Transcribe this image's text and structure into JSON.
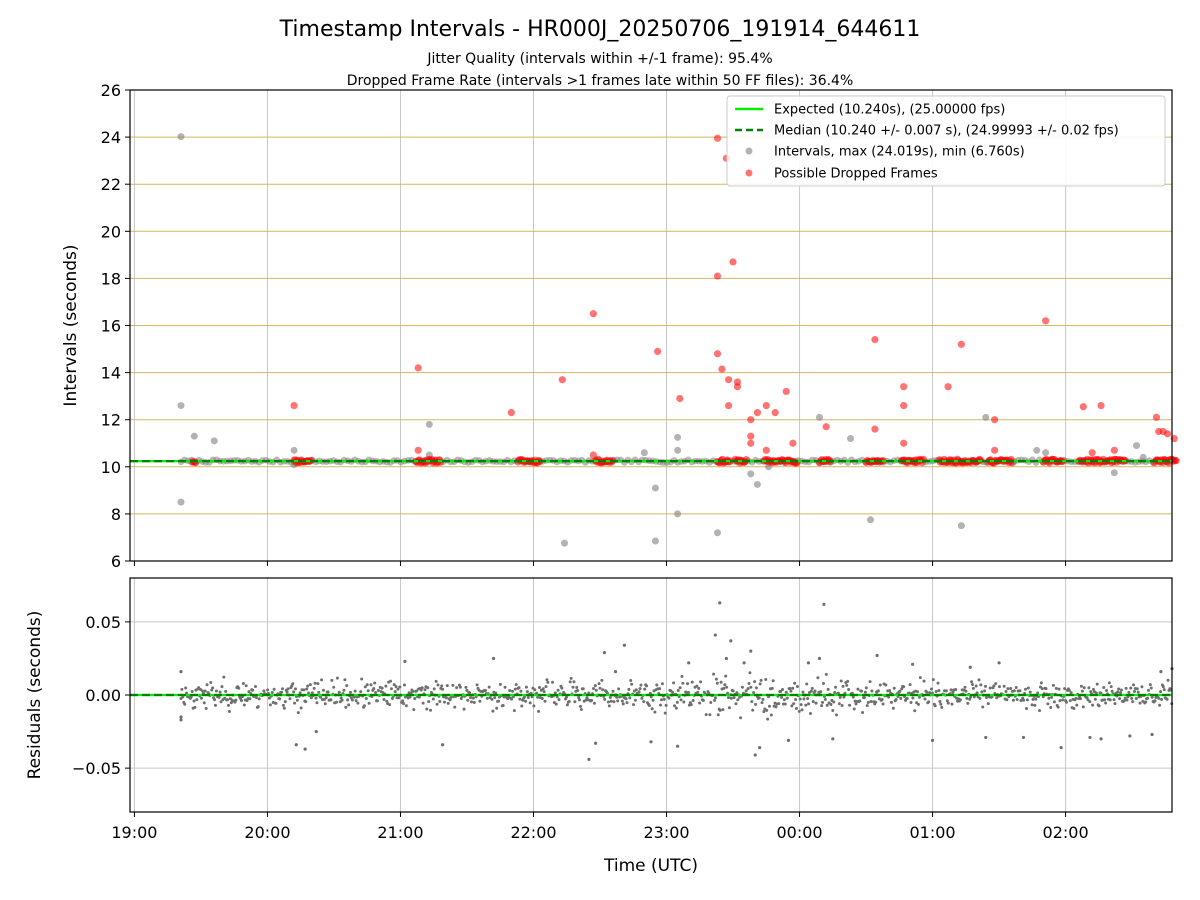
{
  "title": "Timestamp Intervals - HR000J_20250706_191914_644611",
  "subtitle_lines": [
    "Jitter Quality (intervals within +/-1 frame): 95.4%",
    "Dropped Frame Rate (intervals >1 frames late within 50 FF files): 36.4%"
  ],
  "colors": {
    "expected": "#00ee00",
    "median": "#007f00",
    "intervals": "#808080",
    "dropped": "#ff0000",
    "hgrid_top": "#d2b860",
    "grid": "#c8c8c8"
  },
  "chart_data": [
    {
      "type": "scatter",
      "ylabel": "Intervals (seconds)",
      "ylim": [
        6,
        26
      ],
      "yticks": [
        "6",
        "8",
        "10",
        "12",
        "14",
        "16",
        "18",
        "20",
        "22",
        "24",
        "26"
      ],
      "xlim": [
        "18:58",
        "02:48"
      ],
      "legend_position": "top-right",
      "legend": [
        "Expected (10.240s), (25.00000 fps)",
        "Median (10.240 +/- 0.007 s), (24.99993 +/- 0.02 fps)",
        "Intervals, max (24.019s), min (6.760s)",
        "Possible Dropped Frames"
      ],
      "expected_interval": 10.24,
      "median_interval": 10.24,
      "series": [
        {
          "name": "Intervals, max (24.019s), min (6.760s)",
          "points": [
            [
              "19:21",
              24.02
            ],
            [
              "19:21",
              12.6
            ],
            [
              "19:21",
              8.5
            ],
            [
              "19:27",
              11.3
            ],
            [
              "19:36",
              11.1
            ],
            [
              "20:12",
              10.7
            ],
            [
              "20:12",
              10.1
            ],
            [
              "21:13",
              11.8
            ],
            [
              "21:13",
              10.5
            ],
            [
              "22:14",
              6.76
            ],
            [
              "22:50",
              10.6
            ],
            [
              "22:55",
              9.1
            ],
            [
              "22:55",
              6.85
            ],
            [
              "23:05",
              11.25
            ],
            [
              "23:05",
              10.7
            ],
            [
              "23:05",
              8.0
            ],
            [
              "23:23",
              7.2
            ],
            [
              "23:38",
              9.7
            ],
            [
              "23:41",
              9.25
            ],
            [
              "23:46",
              10.0
            ],
            [
              "00:09",
              12.1
            ],
            [
              "00:23",
              11.2
            ],
            [
              "00:32",
              7.75
            ],
            [
              "01:13",
              7.5
            ],
            [
              "01:24",
              12.1
            ],
            [
              "01:47",
              10.7
            ],
            [
              "01:51",
              10.6
            ],
            [
              "02:22",
              9.75
            ],
            [
              "02:32",
              10.9
            ],
            [
              "02:35",
              10.4
            ]
          ]
        },
        {
          "name": "Possible Dropped Frames",
          "points": [
            [
              "20:12",
              12.6
            ],
            [
              "21:08",
              14.2
            ],
            [
              "21:08",
              10.7
            ],
            [
              "21:50",
              12.3
            ],
            [
              "22:13",
              13.7
            ],
            [
              "22:27",
              16.5
            ],
            [
              "22:27",
              10.5
            ],
            [
              "22:56",
              14.9
            ],
            [
              "23:06",
              12.9
            ],
            [
              "23:23",
              23.95
            ],
            [
              "23:23",
              18.1
            ],
            [
              "23:23",
              14.8
            ],
            [
              "23:25",
              14.15
            ],
            [
              "23:27",
              23.1
            ],
            [
              "23:28",
              13.7
            ],
            [
              "23:28",
              12.6
            ],
            [
              "23:30",
              18.7
            ],
            [
              "23:32",
              13.6
            ],
            [
              "23:32",
              13.4
            ],
            [
              "23:38",
              12.0
            ],
            [
              "23:38",
              11.3
            ],
            [
              "23:38",
              11.0
            ],
            [
              "23:41",
              12.3
            ],
            [
              "23:45",
              12.6
            ],
            [
              "23:45",
              10.7
            ],
            [
              "23:49",
              12.3
            ],
            [
              "23:54",
              13.2
            ],
            [
              "23:57",
              11.0
            ],
            [
              "00:12",
              11.7
            ],
            [
              "00:34",
              15.4
            ],
            [
              "00:34",
              11.6
            ],
            [
              "00:47",
              13.4
            ],
            [
              "00:47",
              12.6
            ],
            [
              "00:47",
              11.0
            ],
            [
              "01:07",
              13.4
            ],
            [
              "01:13",
              15.2
            ],
            [
              "01:28",
              12.0
            ],
            [
              "01:28",
              10.7
            ],
            [
              "01:51",
              16.2
            ],
            [
              "02:08",
              12.55
            ],
            [
              "02:16",
              12.6
            ],
            [
              "02:12",
              10.6
            ],
            [
              "02:22",
              10.7
            ],
            [
              "02:41",
              12.1
            ],
            [
              "02:42",
              11.5
            ],
            [
              "02:44",
              11.5
            ],
            [
              "02:46",
              11.4
            ],
            [
              "02:49",
              11.2
            ]
          ],
          "dense_runs_at_baseline": [
            [
              "19:26",
              "19:28"
            ],
            [
              "20:12",
              "20:20"
            ],
            [
              "21:07",
              "21:18"
            ],
            [
              "21:53",
              "22:03"
            ],
            [
              "22:28",
              "22:36"
            ],
            [
              "23:23",
              "23:29"
            ],
            [
              "23:31",
              "23:36"
            ],
            [
              "23:44",
              "23:59"
            ],
            [
              "00:09",
              "00:14"
            ],
            [
              "00:30",
              "00:38"
            ],
            [
              "00:46",
              "00:56"
            ],
            [
              "01:03",
              "01:22"
            ],
            [
              "01:25",
              "01:36"
            ],
            [
              "01:50",
              "01:59"
            ],
            [
              "02:06",
              "02:27"
            ],
            [
              "02:40",
              "02:50"
            ]
          ]
        }
      ]
    },
    {
      "type": "scatter",
      "ylabel": "Residuals (seconds)",
      "xlabel": "Time (UTC)",
      "ylim": [
        -0.08,
        0.08
      ],
      "yticks": [
        "−0.05",
        "0.00",
        "0.05"
      ],
      "xlim": [
        "18:58",
        "02:48"
      ],
      "xticks": [
        "19:00",
        "20:00",
        "21:00",
        "22:00",
        "23:00",
        "00:00",
        "01:00",
        "02:00"
      ],
      "baseline": 0.0,
      "outliers": [
        [
          "19:21",
          0.016
        ],
        [
          "19:21",
          -0.015
        ],
        [
          "19:21",
          -0.017
        ],
        [
          "20:13",
          -0.034
        ],
        [
          "20:17",
          -0.037
        ],
        [
          "20:22",
          -0.025
        ],
        [
          "21:02",
          0.023
        ],
        [
          "22:25",
          -0.044
        ],
        [
          "22:28",
          -0.033
        ],
        [
          "22:32",
          0.029
        ],
        [
          "22:37",
          0.016
        ],
        [
          "22:41",
          0.034
        ],
        [
          "21:19",
          -0.034
        ],
        [
          "21:42",
          0.025
        ],
        [
          "22:53",
          -0.032
        ],
        [
          "23:05",
          -0.035
        ],
        [
          "23:10",
          0.022
        ],
        [
          "23:22",
          0.041
        ],
        [
          "23:24",
          0.063
        ],
        [
          "23:27",
          0.025
        ],
        [
          "23:29",
          0.037
        ],
        [
          "23:35",
          0.022
        ],
        [
          "23:40",
          -0.041
        ],
        [
          "23:38",
          0.03
        ],
        [
          "23:42",
          -0.036
        ],
        [
          "23:55",
          -0.031
        ],
        [
          "00:04",
          0.022
        ],
        [
          "00:09",
          0.025
        ],
        [
          "00:11",
          0.062
        ],
        [
          "00:15",
          -0.03
        ],
        [
          "00:35",
          0.027
        ],
        [
          "00:51",
          0.021
        ],
        [
          "01:00",
          -0.031
        ],
        [
          "01:17",
          0.019
        ],
        [
          "01:24",
          -0.029
        ],
        [
          "01:30",
          0.022
        ],
        [
          "01:41",
          -0.029
        ],
        [
          "01:58",
          -0.036
        ],
        [
          "02:11",
          -0.029
        ],
        [
          "02:16",
          -0.03
        ],
        [
          "02:29",
          -0.028
        ],
        [
          "02:39",
          -0.027
        ],
        [
          "02:43",
          0.016
        ],
        [
          "02:48",
          0.018
        ]
      ]
    }
  ]
}
